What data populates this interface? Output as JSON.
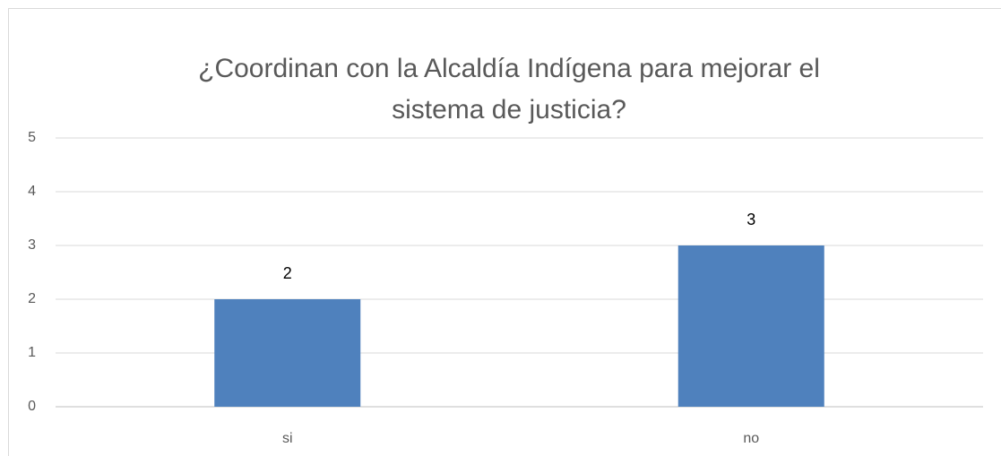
{
  "chart_data": {
    "type": "bar",
    "title": [
      "¿Coordinan con la Alcaldía Indígena para mejorar el",
      "sistema de justicia?"
    ],
    "categories": [
      "si",
      "no"
    ],
    "values": [
      2,
      3
    ],
    "color": "#4f81bd",
    "ylim": [
      0,
      5
    ],
    "yticks": [
      0,
      1,
      2,
      3,
      4,
      5
    ],
    "grid": true
  }
}
